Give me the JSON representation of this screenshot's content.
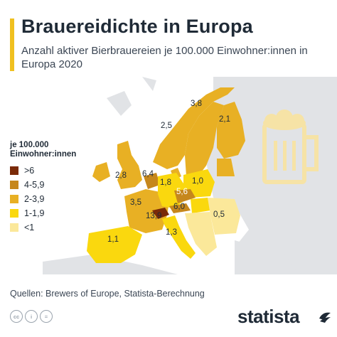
{
  "header": {
    "title": "Brauereidichte in Europa",
    "subtitle": "Anzahl aktiver Bierbrauereien je 100.000 Einwohner:innen in Europa 2020"
  },
  "legend": {
    "title": "je 100.000\nEinwohner:innen",
    "items": [
      {
        "label": ">6",
        "color": "#7a2a08"
      },
      {
        "label": "4-5,9",
        "color": "#c6871c"
      },
      {
        "label": "2-3,9",
        "color": "#e8b024"
      },
      {
        "label": "1-1,9",
        "color": "#fad80e"
      },
      {
        "label": "<1",
        "color": "#fbe89a"
      }
    ]
  },
  "map_labels": {
    "norway": "2,5",
    "sweden": "3,8",
    "finland": "2,1",
    "uk": "2,8",
    "benelux": "6,4",
    "germany": "1,8",
    "poland": "1,0",
    "czechia": "5,6",
    "france": "3,5",
    "switzerland": "13,9",
    "austria": "6,0",
    "italy": "1,3",
    "spain": "1,1",
    "romania": "0,5"
  },
  "colors": {
    "accent": "#f0c020",
    "land_background": "#e1e3e6",
    "sea": "#ffffff",
    "beer_icon": "#f6e3a6"
  },
  "icons": [
    "beer-mug-icon",
    "creative-commons-icon",
    "statista-logo-icon"
  ],
  "footer": {
    "source": "Quellen: Brewers of Europe, Statista-Berechnung",
    "cc_icons": [
      "cc",
      "i",
      "="
    ],
    "logo": "statista"
  }
}
